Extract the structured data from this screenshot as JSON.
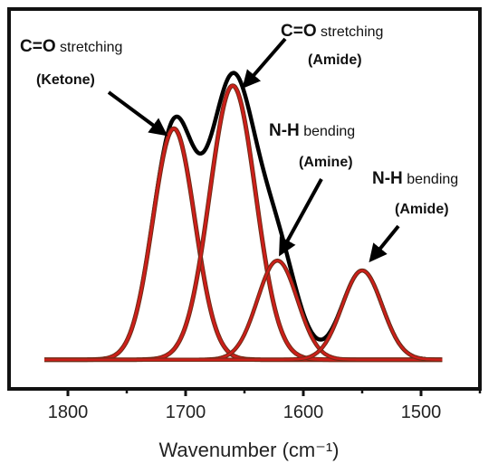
{
  "chart_data": {
    "type": "line",
    "xlabel": "Wavenumber (cm⁻¹)",
    "ylabel": "",
    "xlim": [
      1850,
      1450
    ],
    "x_reversed": true,
    "xticks": [
      1800,
      1700,
      1600,
      1500
    ],
    "y_ticks_shown": false,
    "grid": false,
    "baseline": 0.02,
    "envelope_color": "#000000",
    "component_fill_color": "#cc1f1a",
    "component_edge_color": "#6e2b16",
    "x_range_plotted": [
      1820,
      1482
    ],
    "components": [
      {
        "center": 1710,
        "height": 0.7,
        "fwhm": 42,
        "stroke_width": 3
      },
      {
        "center": 1660,
        "height": 0.83,
        "fwhm": 46,
        "stroke_width": 3
      },
      {
        "center": 1622,
        "height": 0.3,
        "fwhm": 40,
        "stroke_width": 2.5
      },
      {
        "center": 1550,
        "height": 0.27,
        "fwhm": 40,
        "stroke_width": 2.5
      }
    ],
    "annotations": [
      {
        "label_strong": "C=O",
        "label_rest": " stretching",
        "sub": "(Ketone)",
        "arrow_to_component": 0
      },
      {
        "label_strong": "C=O",
        "label_rest": " stretching",
        "sub": "(Amide)",
        "arrow_to_component": 1
      },
      {
        "label_strong": "N-H",
        "label_rest": " bending",
        "sub": "(Amine)",
        "arrow_to_component": 2
      },
      {
        "label_strong": "N-H",
        "label_rest": " bending",
        "sub": "(Amide)",
        "arrow_to_component": 3
      }
    ]
  }
}
